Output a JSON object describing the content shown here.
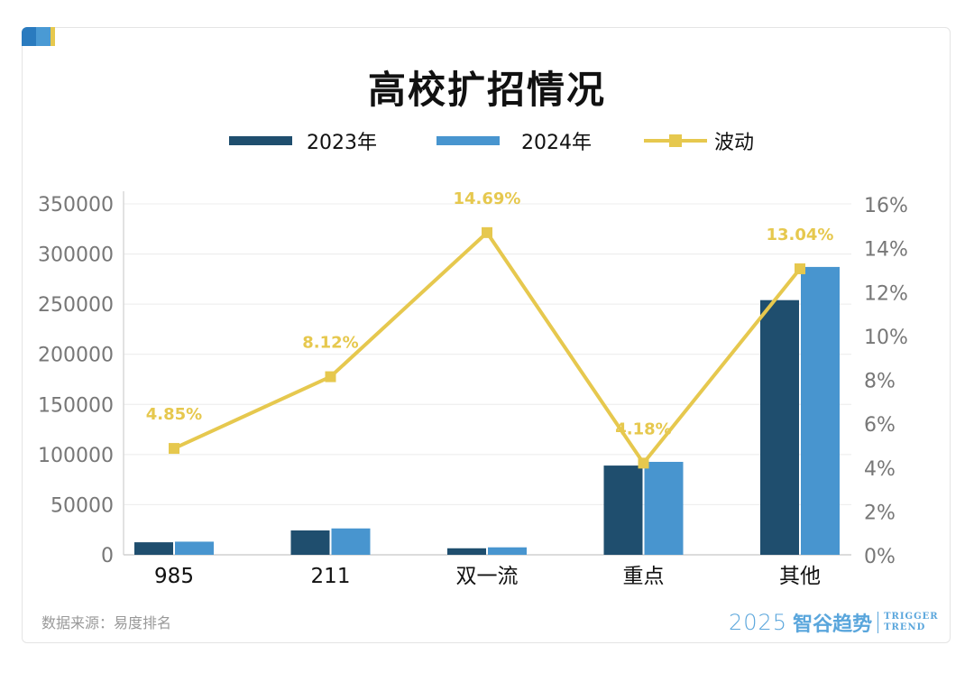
{
  "colors": {
    "y2023": "#1f4e6e",
    "y2024": "#4895cf",
    "line": "#e6c84e",
    "accent_blue": "#2a7bbf",
    "accent_light": "#4a9ad4"
  },
  "title": "高校扩招情况",
  "source": "数据来源：易度排名",
  "logo": {
    "year": "2025",
    "name": "智谷趋势",
    "en1": "TRIGGER",
    "en2": "TREND"
  },
  "chart_data": {
    "type": "bar",
    "title": "高校扩招情况",
    "categories": [
      "985",
      "211",
      "双一流",
      "重点",
      "其他"
    ],
    "series": [
      {
        "name": "2023年",
        "type": "bar",
        "axis": "left",
        "values": [
          12500,
          24300,
          6500,
          89000,
          254000
        ]
      },
      {
        "name": "2024年",
        "type": "bar",
        "axis": "left",
        "values": [
          13100,
          26300,
          7450,
          92700,
          287100
        ]
      },
      {
        "name": "波动",
        "type": "line",
        "axis": "right",
        "values": [
          4.85,
          8.12,
          14.69,
          4.18,
          13.04
        ],
        "labels": [
          "4.85%",
          "8.12%",
          "14.69%",
          "4.18%",
          "13.04%"
        ]
      }
    ],
    "ylim": [
      0,
      350000
    ],
    "yticks": [
      "0",
      "50000",
      "100000",
      "150000",
      "200000",
      "250000",
      "300000",
      "350000"
    ],
    "y2lim": [
      0,
      16
    ],
    "y2ticks": [
      "0%",
      "2%",
      "4%",
      "6%",
      "8%",
      "10%",
      "12%",
      "14%",
      "16%"
    ],
    "grid": true,
    "legend": "top"
  }
}
